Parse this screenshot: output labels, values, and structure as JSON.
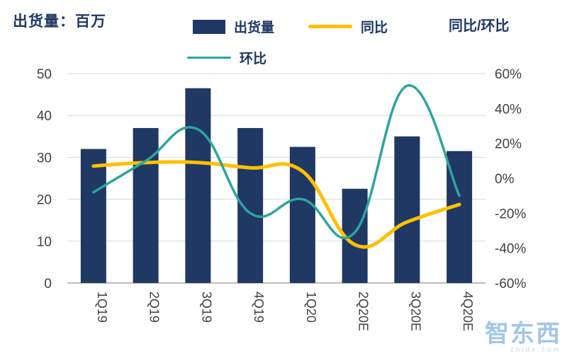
{
  "header": {
    "title": "出货量：百万",
    "right_axis_title": "同比/环比",
    "legend": [
      {
        "label": "出货量",
        "type": "bar",
        "color": "#1f3864"
      },
      {
        "label": "同比",
        "type": "line",
        "color": "#ffc000"
      },
      {
        "label": "环比",
        "type": "line",
        "color": "#2ca49e"
      }
    ]
  },
  "watermark": {
    "text": "智东西",
    "subtext": "zhidx.com"
  },
  "chart_data": {
    "type": "combo",
    "categories": [
      "1Q19",
      "2Q19",
      "3Q19",
      "4Q19",
      "1Q20",
      "2Q20E",
      "3Q20E",
      "4Q20E"
    ],
    "series": [
      {
        "name": "出货量",
        "type": "bar",
        "axis": "left",
        "color": "#1f3864",
        "values": [
          32,
          37,
          46.5,
          37,
          32.5,
          22.5,
          35,
          31.5
        ]
      },
      {
        "name": "同比",
        "type": "line",
        "axis": "right",
        "color": "#ffc000",
        "values": [
          7,
          9,
          9,
          6,
          4,
          -38,
          -25,
          -15
        ]
      },
      {
        "name": "环比",
        "type": "line",
        "axis": "right",
        "color": "#2ca49e",
        "values": [
          -8,
          10,
          28,
          -20,
          -12,
          -31,
          53,
          -10
        ]
      }
    ],
    "left_axis": {
      "min": 0,
      "max": 50,
      "ticks": [
        0,
        10,
        20,
        30,
        40,
        50
      ]
    },
    "right_axis": {
      "min": -60,
      "max": 60,
      "ticks": [
        "-60%",
        "-40%",
        "-20%",
        "0%",
        "20%",
        "40%",
        "60%"
      ]
    },
    "grid": true,
    "colors": {
      "grid": "#d9d9d9",
      "axis": "#a6a6a6",
      "tick_text": "#404040"
    }
  }
}
